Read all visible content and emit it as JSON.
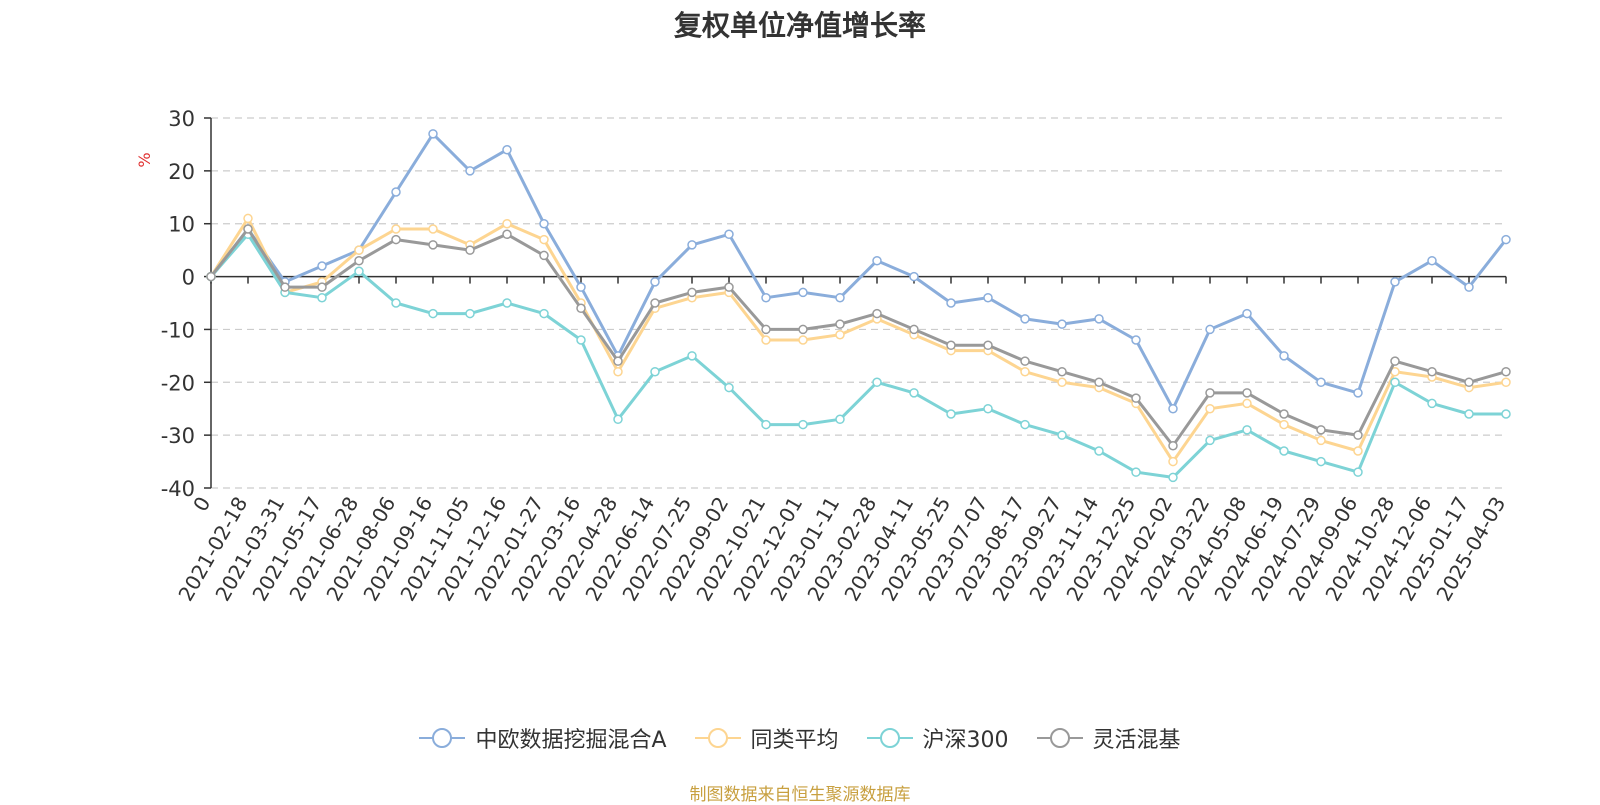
{
  "chart_data": {
    "type": "line",
    "title": "复权单位净值增长率",
    "ylabel": "%",
    "ylim": [
      -40,
      30
    ],
    "yticks": [
      30,
      20,
      10,
      0,
      -10,
      -20,
      -30,
      -40
    ],
    "grid": true,
    "legend_position": "bottom",
    "x_tick_labels": [
      "0",
      "2021-02-18",
      "2021-03-31",
      "2021-05-17",
      "2021-06-28",
      "2021-08-06",
      "2021-09-16",
      "2021-11-05",
      "2021-12-16",
      "2022-01-27",
      "2022-03-16",
      "2022-04-28",
      "2022-06-14",
      "2022-07-25",
      "2022-09-02",
      "2022-10-21",
      "2022-12-01",
      "2023-01-11",
      "2023-02-28",
      "2023-04-11",
      "2023-05-25",
      "2023-07-07",
      "2023-08-17",
      "2023-09-27",
      "2023-11-14",
      "2023-12-25",
      "2024-02-02",
      "2024-03-22",
      "2024-05-08",
      "2024-06-19",
      "2024-07-29",
      "2024-09-06",
      "2024-10-28",
      "2024-12-06",
      "2025-01-17",
      "2025-04-03"
    ],
    "x": [
      "0",
      "2021-02-18",
      "2021-03-31",
      "2021-05-17",
      "2021-06-28",
      "2021-08-06",
      "2021-09-16",
      "2021-11-05",
      "2021-12-16",
      "2022-01-27",
      "2022-03-16",
      "2022-04-28",
      "2022-06-14",
      "2022-07-25",
      "2022-09-02",
      "2022-10-21",
      "2022-12-01",
      "2023-01-11",
      "2023-02-28",
      "2023-04-11",
      "2023-05-25",
      "2023-07-07",
      "2023-08-17",
      "2023-09-27",
      "2023-11-14",
      "2023-12-25",
      "2024-02-02",
      "2024-03-22",
      "2024-05-08",
      "2024-06-19",
      "2024-07-29",
      "2024-09-06",
      "2024-10-28",
      "2024-12-06",
      "2025-01-17",
      "2025-04-03"
    ],
    "series": [
      {
        "name": "中欧数据挖掘混合A",
        "color": "#8aaddb",
        "values": [
          0,
          9,
          -1,
          2,
          5,
          16,
          27,
          20,
          24,
          10,
          -2,
          -15,
          -1,
          6,
          8,
          -4,
          -3,
          -4,
          3,
          0,
          -5,
          -4,
          -8,
          -9,
          -8,
          -12,
          -25,
          -10,
          -7,
          -15,
          -20,
          -22,
          -1,
          3,
          -2,
          7
        ]
      },
      {
        "name": "同类平均",
        "color": "#fdd591",
        "values": [
          0,
          11,
          -3,
          -1,
          5,
          9,
          9,
          6,
          10,
          7,
          -5,
          -18,
          -6,
          -4,
          -3,
          -12,
          -12,
          -11,
          -8,
          -11,
          -14,
          -14,
          -18,
          -20,
          -21,
          -24,
          -35,
          -25,
          -24,
          -28,
          -31,
          -33,
          -18,
          -19,
          -21,
          -20
        ]
      },
      {
        "name": "沪深300",
        "color": "#7dd3d6",
        "values": [
          0,
          8,
          -3,
          -4,
          1,
          -5,
          -7,
          -7,
          -5,
          -7,
          -12,
          -27,
          -18,
          -15,
          -21,
          -28,
          -28,
          -27,
          -20,
          -22,
          -26,
          -25,
          -28,
          -30,
          -33,
          -37,
          -38,
          -31,
          -29,
          -33,
          -35,
          -37,
          -20,
          -24,
          -26,
          -26
        ]
      },
      {
        "name": "灵活混基",
        "color": "#999999",
        "values": [
          0,
          9,
          -2,
          -2,
          3,
          7,
          6,
          5,
          8,
          4,
          -6,
          -16,
          -5,
          -3,
          -2,
          -10,
          -10,
          -9,
          -7,
          -10,
          -13,
          -13,
          -16,
          -18,
          -20,
          -23,
          -32,
          -22,
          -22,
          -26,
          -29,
          -30,
          -16,
          -18,
          -20,
          -18
        ]
      }
    ]
  },
  "legend": {
    "items": [
      "中欧数据挖掘混合A",
      "同类平均",
      "沪深300",
      "灵活混基"
    ]
  },
  "footer": {
    "source": "制图数据来自恒生聚源数据库"
  },
  "colors": {
    "title": "#333333",
    "axis": "#333333",
    "grid": "#cccccc",
    "ylabel": "#e03030",
    "source": "#c8a040"
  }
}
